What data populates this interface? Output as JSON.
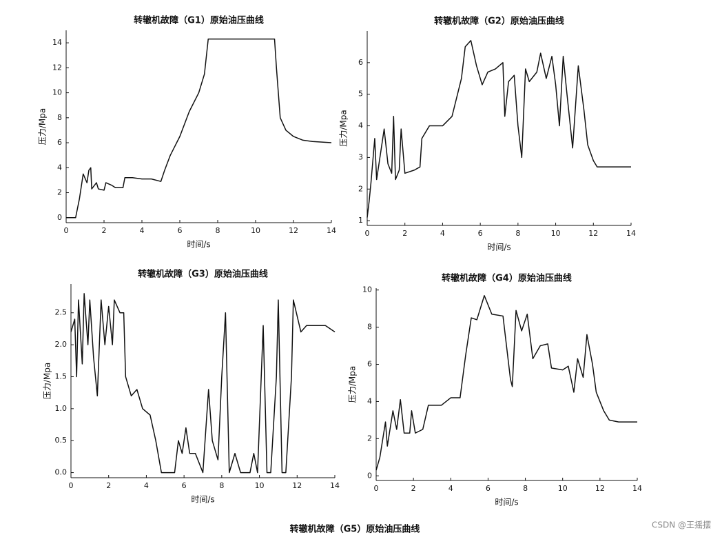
{
  "chart_data": [
    {
      "type": "line",
      "title": "转辙机故障（G1）原始油压曲线",
      "x_label": "时间/s",
      "y_label": "压力/Mpa",
      "xlim": [
        0,
        14
      ],
      "xticks": [
        0,
        2,
        4,
        6,
        8,
        10,
        12,
        14
      ],
      "ylim": [
        -0.4,
        15
      ],
      "yticks": [
        0,
        2,
        4,
        6,
        8,
        10,
        12,
        14
      ],
      "series": [
        {
          "color": "#111111",
          "x": [
            0,
            0.5,
            0.7,
            0.8,
            0.9,
            1.1,
            1.2,
            1.3,
            1.35,
            1.6,
            1.7,
            2.0,
            2.1,
            2.4,
            2.6,
            3.0,
            3.1,
            3.5,
            4.0,
            4.5,
            5.0,
            5.2,
            5.5,
            6.0,
            6.5,
            7.0,
            7.3,
            7.5,
            8,
            9,
            10,
            11,
            11.1,
            11.3,
            11.6,
            12,
            12.5,
            13,
            14
          ],
          "values": [
            0,
            0,
            1.5,
            2.5,
            3.5,
            2.8,
            3.8,
            4.0,
            2.3,
            2.8,
            2.3,
            2.2,
            2.8,
            2.6,
            2.4,
            2.4,
            3.2,
            3.2,
            3.1,
            3.1,
            2.9,
            3.8,
            5.0,
            6.5,
            8.5,
            10,
            11.5,
            14.3,
            14.3,
            14.3,
            14.3,
            14.3,
            12,
            8,
            7,
            6.5,
            6.2,
            6.1,
            6.0
          ]
        }
      ]
    },
    {
      "type": "line",
      "title": "转辙机故障（G2）原始油压曲线",
      "x_label": "时间/s",
      "y_label": "压力/Mpa",
      "xlim": [
        0,
        14
      ],
      "xticks": [
        0,
        2,
        4,
        6,
        8,
        10,
        12,
        14
      ],
      "ylim": [
        0.85,
        7
      ],
      "yticks": [
        1,
        2,
        3,
        4,
        5,
        6
      ],
      "series": [
        {
          "color": "#111111",
          "x": [
            0,
            0.1,
            0.2,
            0.4,
            0.5,
            0.8,
            0.9,
            1.1,
            1.3,
            1.4,
            1.5,
            1.7,
            1.8,
            2.0,
            2.5,
            2.8,
            2.9,
            3.3,
            4.0,
            4.5,
            5.0,
            5.2,
            5.5,
            5.8,
            6.1,
            6.4,
            6.8,
            7.2,
            7.3,
            7.5,
            7.8,
            8.0,
            8.2,
            8.4,
            8.6,
            9.0,
            9.2,
            9.5,
            9.8,
            10.0,
            10.2,
            10.4,
            10.6,
            10.9,
            11.2,
            11.5,
            11.7,
            12.0,
            12.2,
            13,
            14
          ],
          "values": [
            1.1,
            1.6,
            2.2,
            3.6,
            2.3,
            3.5,
            3.9,
            2.8,
            2.5,
            4.3,
            2.3,
            2.6,
            3.9,
            2.5,
            2.6,
            2.7,
            3.6,
            4.0,
            4.0,
            4.3,
            5.5,
            6.5,
            6.7,
            5.9,
            5.3,
            5.7,
            5.8,
            6.0,
            4.3,
            5.4,
            5.6,
            4.0,
            3.0,
            5.8,
            5.4,
            5.7,
            6.3,
            5.5,
            6.2,
            5.3,
            4.0,
            6.2,
            5.0,
            3.3,
            5.9,
            4.5,
            3.4,
            2.9,
            2.7,
            2.7,
            2.7
          ]
        }
      ]
    },
    {
      "type": "line",
      "title": "转辙机故障（G3）原始油压曲线",
      "x_label": "时间/s",
      "y_label": "压力/Mpa",
      "xlim": [
        0,
        14
      ],
      "xticks": [
        0,
        2,
        4,
        6,
        8,
        10,
        12,
        14
      ],
      "ylim": [
        -0.08,
        2.95
      ],
      "yticks": [
        {
          "value": 0,
          "label": "0.0"
        },
        0.5,
        {
          "value": 1,
          "label": "1.0"
        },
        1.5,
        {
          "value": 2,
          "label": "2.0"
        },
        2.5
      ],
      "series": [
        {
          "color": "#111111",
          "x": [
            0,
            0.2,
            0.3,
            0.4,
            0.6,
            0.7,
            0.9,
            1.0,
            1.2,
            1.4,
            1.6,
            1.8,
            2.0,
            2.2,
            2.3,
            2.6,
            2.8,
            2.9,
            3.2,
            3.5,
            3.8,
            4.2,
            4.5,
            4.8,
            5.5,
            5.7,
            5.9,
            6.1,
            6.3,
            6.6,
            7.0,
            7.3,
            7.5,
            7.8,
            8.0,
            8.2,
            8.4,
            8.7,
            9.0,
            9.5,
            9.7,
            9.9,
            10.2,
            10.4,
            10.6,
            10.9,
            11.0,
            11.2,
            11.4,
            11.7,
            11.8,
            12.2,
            12.5,
            13.5,
            14
          ],
          "values": [
            2.2,
            2.4,
            1.5,
            2.7,
            1.7,
            2.8,
            2.0,
            2.7,
            1.8,
            1.2,
            2.7,
            2.0,
            2.6,
            2.0,
            2.7,
            2.5,
            2.5,
            1.5,
            1.2,
            1.3,
            1.0,
            0.9,
            0.5,
            0.0,
            0.0,
            0.5,
            0.3,
            0.7,
            0.3,
            0.3,
            0.0,
            1.3,
            0.5,
            0.2,
            1.5,
            2.5,
            0.0,
            0.3,
            0.0,
            0.0,
            0.3,
            0.0,
            2.3,
            0.0,
            0.0,
            1.5,
            2.7,
            0.0,
            0.0,
            1.5,
            2.7,
            2.2,
            2.3,
            2.3,
            2.2
          ]
        }
      ]
    },
    {
      "type": "line",
      "title": "转辙机故障（G4）原始油压曲线",
      "x_label": "时间/s",
      "y_label": "压力/Mpa",
      "xlim": [
        0,
        14
      ],
      "xticks": [
        0,
        2,
        4,
        6,
        8,
        10,
        12,
        14
      ],
      "ylim": [
        -0.25,
        10.1
      ],
      "yticks": [
        0,
        2,
        4,
        6,
        8,
        10
      ],
      "series": [
        {
          "color": "#111111",
          "x": [
            0,
            0.2,
            0.5,
            0.6,
            0.9,
            1.1,
            1.3,
            1.5,
            1.8,
            1.9,
            2.1,
            2.5,
            2.8,
            3.5,
            4.0,
            4.5,
            4.8,
            5.1,
            5.4,
            5.8,
            6.2,
            6.8,
            7.2,
            7.3,
            7.5,
            7.8,
            8.1,
            8.4,
            8.8,
            9.2,
            9.4,
            10.0,
            10.3,
            10.6,
            10.8,
            11.1,
            11.3,
            11.6,
            11.8,
            12.2,
            12.5,
            13,
            14
          ],
          "values": [
            0.3,
            1,
            2.9,
            1.6,
            3.5,
            2.5,
            4.1,
            2.3,
            2.3,
            3.5,
            2.3,
            2.5,
            3.8,
            3.8,
            4.2,
            4.2,
            6.5,
            8.5,
            8.4,
            9.7,
            8.7,
            8.6,
            5.2,
            4.8,
            8.9,
            7.8,
            8.7,
            6.3,
            7.0,
            7.1,
            5.8,
            5.7,
            5.9,
            4.5,
            6.3,
            5.3,
            7.6,
            6.0,
            4.5,
            3.5,
            3.0,
            2.9,
            2.9
          ]
        }
      ]
    }
  ],
  "caption": "转辙机故障（G5）原始油压曲线",
  "watermark": "CSDN @王摇摆"
}
